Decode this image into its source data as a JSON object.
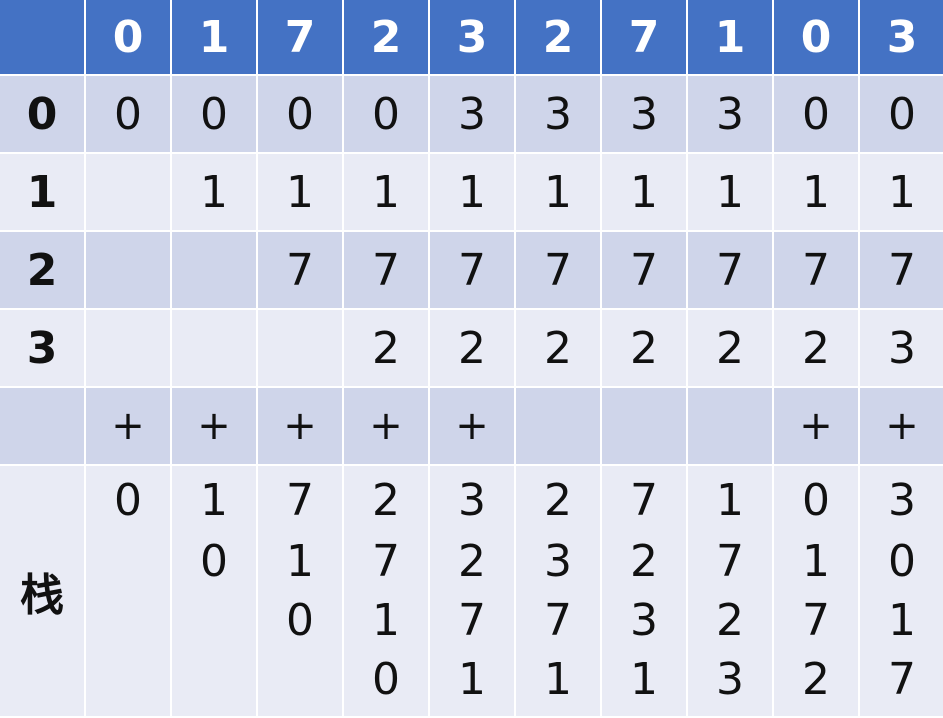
{
  "header": {
    "corner": "",
    "sequence": [
      "0",
      "1",
      "7",
      "2",
      "3",
      "2",
      "7",
      "1",
      "0",
      "3"
    ]
  },
  "rows": [
    {
      "label": "0",
      "cells": [
        "0",
        "0",
        "0",
        "0",
        "3",
        "3",
        "3",
        "3",
        "0",
        "0"
      ],
      "highlight": [
        0,
        4,
        8
      ]
    },
    {
      "label": "1",
      "cells": [
        "",
        "1",
        "1",
        "1",
        "1",
        "1",
        "1",
        "1",
        "1",
        "1"
      ],
      "highlight": [
        1
      ]
    },
    {
      "label": "2",
      "cells": [
        "",
        "",
        "7",
        "7",
        "7",
        "7",
        "7",
        "7",
        "7",
        "7"
      ],
      "highlight": [
        2
      ]
    },
    {
      "label": "3",
      "cells": [
        "",
        "",
        "",
        "2",
        "2",
        "2",
        "2",
        "2",
        "2",
        "3"
      ],
      "highlight": [
        3,
        9
      ]
    }
  ],
  "fault_row": {
    "label": "",
    "cells": [
      "+",
      "+",
      "+",
      "+",
      "+",
      "",
      "",
      "",
      "+",
      "+"
    ]
  },
  "stack_row": {
    "label": "栈",
    "stacks": [
      [
        "0"
      ],
      [
        "1",
        "0"
      ],
      [
        "7",
        "1",
        "0"
      ],
      [
        "2",
        "7",
        "1",
        "0"
      ],
      [
        "3",
        "2",
        "7",
        "1"
      ],
      [
        "2",
        "3",
        "7",
        "1"
      ],
      [
        "7",
        "2",
        "3",
        "1"
      ],
      [
        "1",
        "7",
        "2",
        "3"
      ],
      [
        "0",
        "1",
        "7",
        "2"
      ],
      [
        "3",
        "0",
        "1",
        "7"
      ]
    ]
  },
  "colors": {
    "header_bg": "#4472c4",
    "band_dark": "#cfd5ea",
    "band_light": "#e9ebf5",
    "highlight": "#ed7d31"
  }
}
